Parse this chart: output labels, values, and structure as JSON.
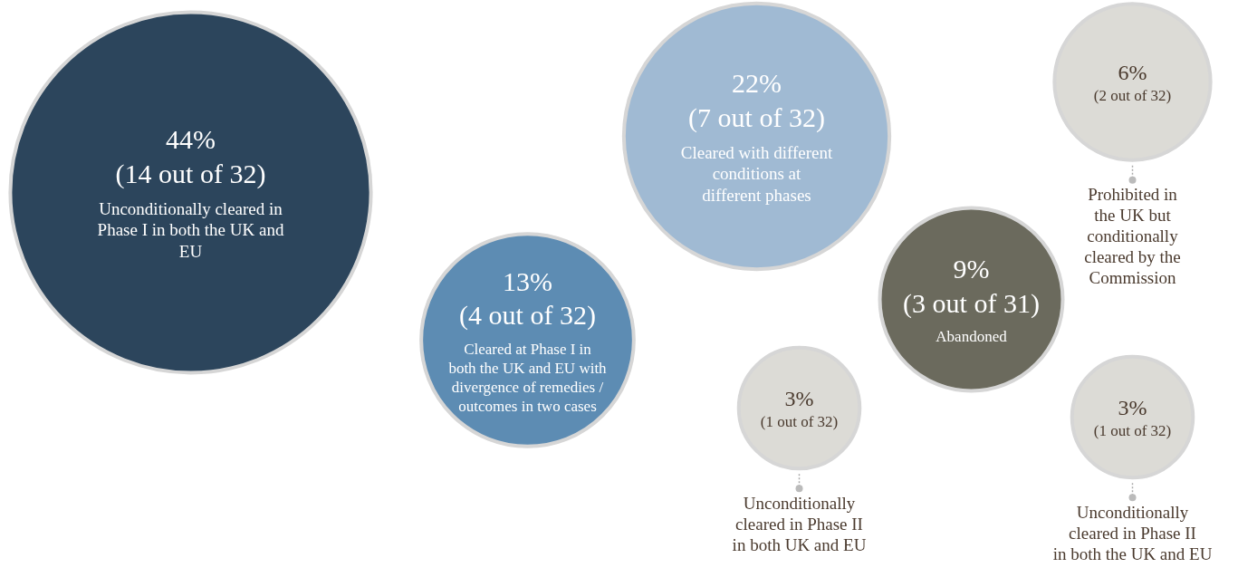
{
  "chart_data": {
    "type": "other",
    "categories": [
      "Unconditionally cleared in Phase I in both the UK and EU",
      "Cleared at Phase I in both the UK and EU with divergence of remedies / outcomes in two cases",
      "Cleared with different conditions at different phases",
      "Unconditionally cleared in Phase II in both UK and EU",
      "Abandoned",
      "Prohibited in the UK but conditionally cleared by the Commission",
      "Unconditionally cleared in Phase II in both the UK and EU"
    ],
    "values": [
      44,
      13,
      22,
      3,
      9,
      6,
      3
    ],
    "value_labels": [
      "44%",
      "13%",
      "22%",
      "3%",
      "9%",
      "6%",
      "3%"
    ],
    "annotations": [
      "(14 out of 32)",
      "(4 out of 32)",
      "(7 out of 32)",
      "(1 out of 32)",
      "(3 out of 31)",
      "(2 out of 32)",
      "(1 out of 32)"
    ],
    "colors": [
      "#2c455c",
      "#5d8cb3",
      "#a0bad3",
      "#dcdbd6",
      "#6b6a5d",
      "#dcdbd6",
      "#dcdbd6"
    ]
  }
}
